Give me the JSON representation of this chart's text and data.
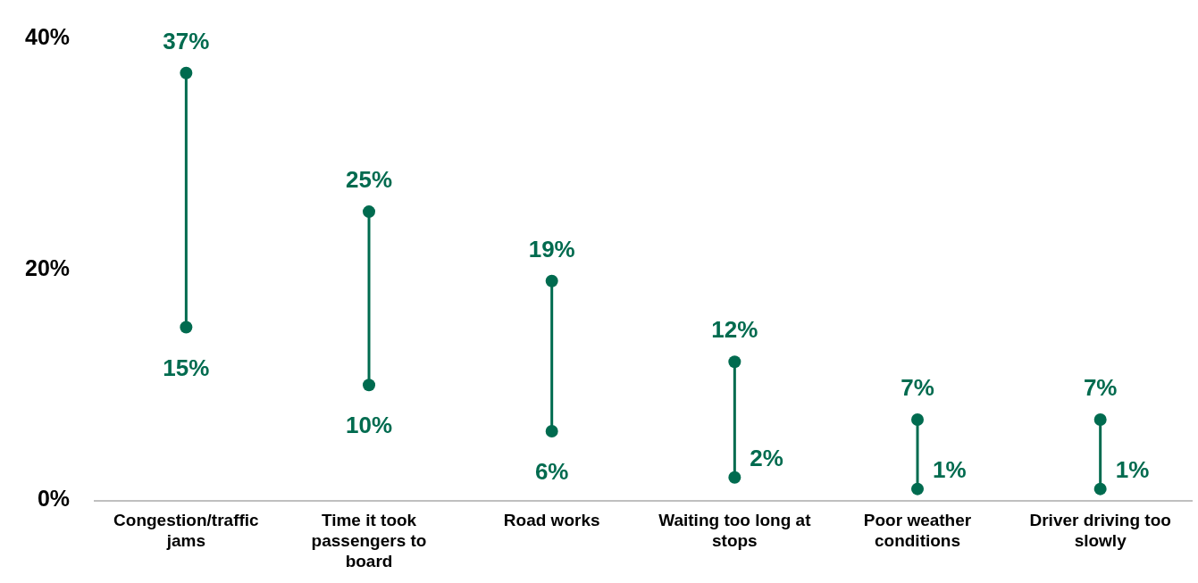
{
  "chart_data": {
    "type": "scatter",
    "categories": [
      "Congestion/traffic jams",
      "Time it took passengers to board",
      "Road works",
      "Waiting too long at stops",
      "Poor weather conditions",
      "Driver driving too slowly"
    ],
    "series": [
      {
        "color": "#006b4f",
        "values": [
          37,
          25,
          19,
          12,
          7,
          7
        ],
        "value_labels": [
          "37%",
          "25%",
          "19%",
          "12%",
          "7%",
          "7%"
        ]
      },
      {
        "color": "#006b4f",
        "values": [
          15,
          10,
          6,
          2,
          1,
          1
        ],
        "value_labels": [
          "15%",
          "10%",
          "6%",
          "2%",
          "1%",
          "1%"
        ]
      }
    ],
    "ylim": [
      0,
      40
    ],
    "yticks": [
      {
        "value": 0,
        "label": "0%"
      },
      {
        "value": 20,
        "label": "20%"
      },
      {
        "value": 40,
        "label": "40%"
      }
    ],
    "grid": false,
    "legend": false,
    "marker": "circle"
  }
}
